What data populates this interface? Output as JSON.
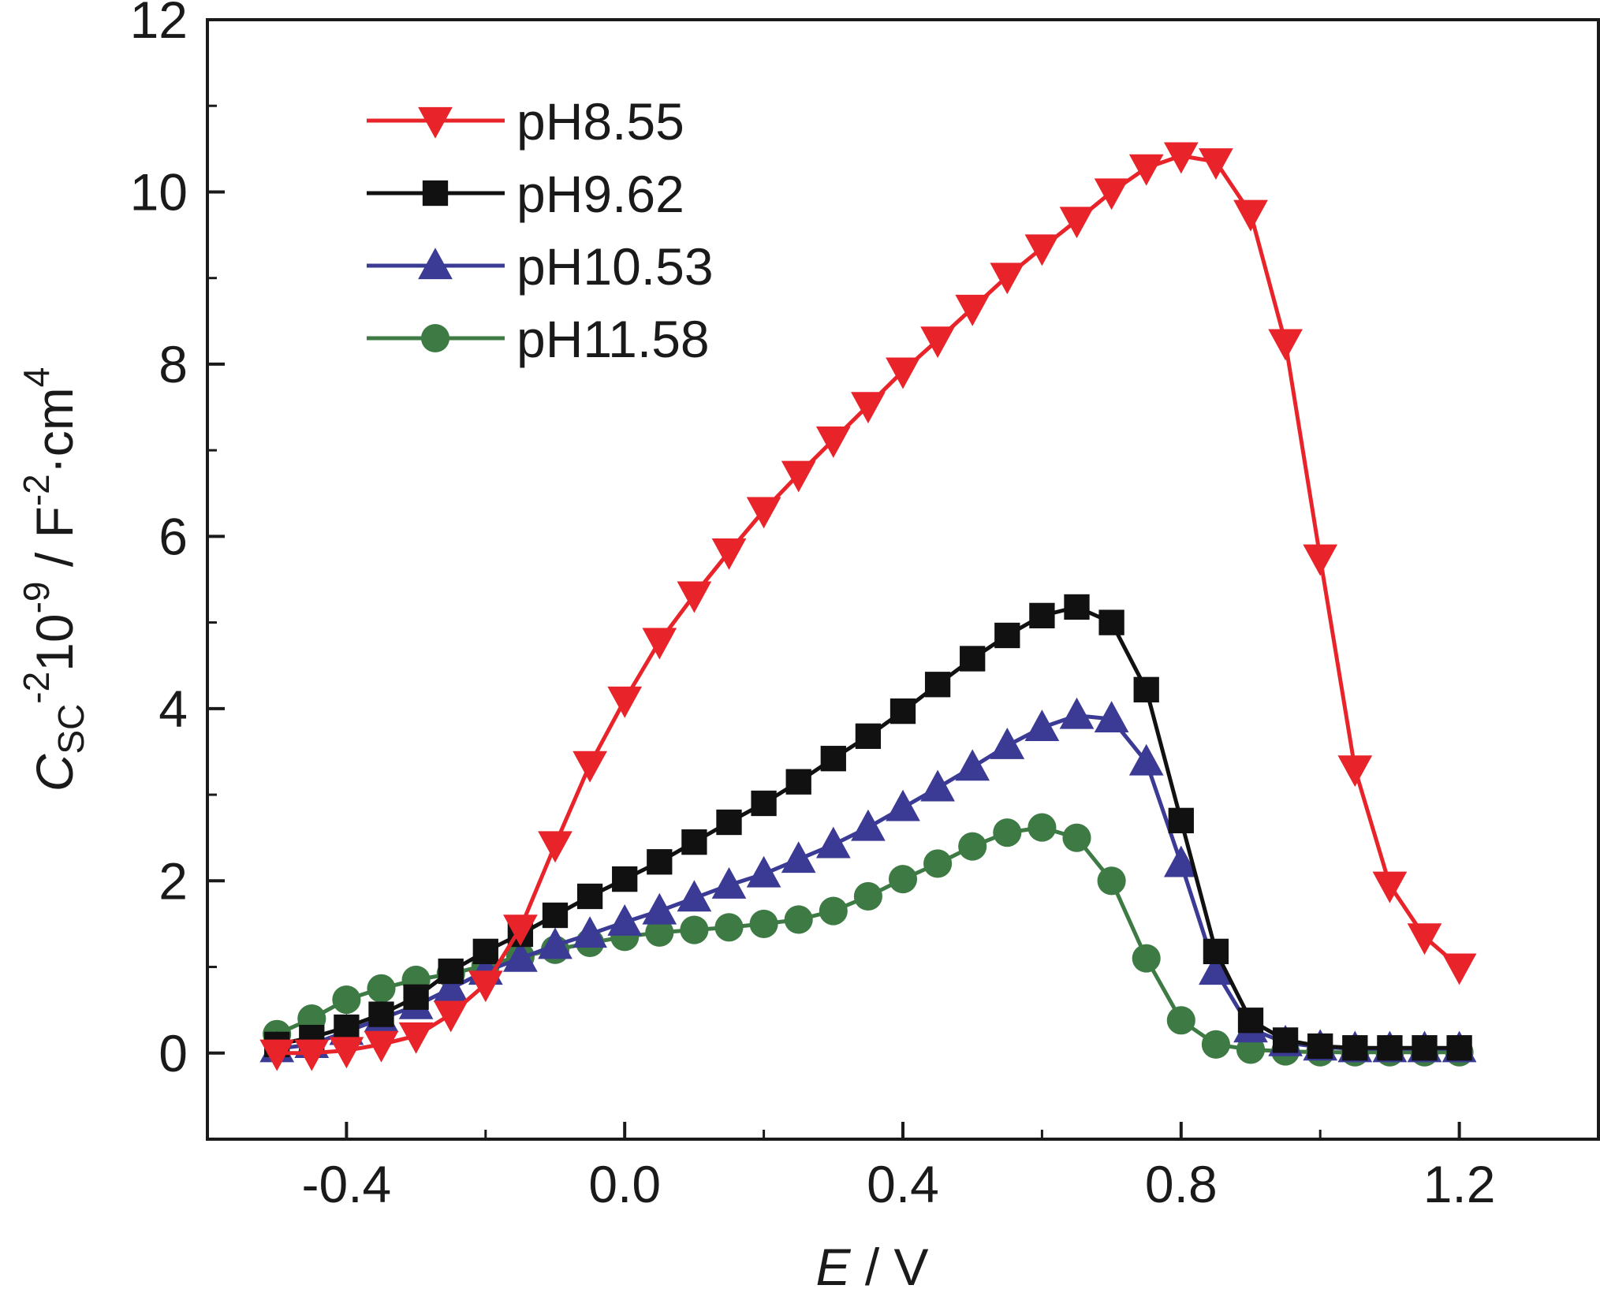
{
  "chart_data": {
    "type": "line",
    "xaxis": {
      "range": [
        -0.6,
        1.4
      ],
      "ticks": [
        -0.4,
        0.0,
        0.4,
        0.8,
        1.2
      ],
      "tick_labels": [
        "-0.4",
        "0.0",
        "0.4",
        "0.8",
        "1.2"
      ],
      "minor_ticks": [
        -0.6,
        -0.2,
        0.2,
        0.6,
        1.0
      ]
    },
    "yaxis": {
      "range": [
        -1,
        12
      ],
      "ticks": [
        0,
        2,
        4,
        6,
        8,
        10,
        12
      ],
      "tick_labels": [
        "0",
        "2",
        "4",
        "6",
        "8",
        "10",
        "12"
      ],
      "minor_ticks": [
        1,
        3,
        5,
        7,
        9,
        11
      ]
    },
    "xlabel": {
      "italic": "E",
      "rest": " / V"
    },
    "ylabel": {
      "symbol": "C",
      "sub": "SC",
      "sup1": "-2",
      "mid": "10",
      "sup2": "-9",
      "unit": " / F",
      "sup3": "-2",
      "unit2": "·cm",
      "sup4": "4"
    },
    "grid": false,
    "legend_position": "top-left",
    "x": [
      -0.5,
      -0.45,
      -0.4,
      -0.35,
      -0.3,
      -0.25,
      -0.2,
      -0.15,
      -0.1,
      -0.05,
      0.0,
      0.05,
      0.1,
      0.15,
      0.2,
      0.25,
      0.3,
      0.35,
      0.4,
      0.45,
      0.5,
      0.55,
      0.6,
      0.65,
      0.7,
      0.75,
      0.8,
      0.85,
      0.9,
      0.95,
      1.0,
      1.05,
      1.1,
      1.15,
      1.2
    ],
    "series": [
      {
        "name": "pH8.55",
        "color": "#e8242a",
        "marker": "triangle-down",
        "values": [
          0.0,
          0.0,
          0.03,
          0.1,
          0.2,
          0.45,
          0.8,
          1.45,
          2.42,
          3.35,
          4.1,
          4.78,
          5.32,
          5.82,
          6.3,
          6.72,
          7.12,
          7.52,
          7.92,
          8.28,
          8.65,
          9.02,
          9.35,
          9.67,
          10.0,
          10.28,
          10.42,
          10.35,
          9.75,
          8.25,
          5.75,
          3.3,
          1.95,
          1.35,
          1.0
        ]
      },
      {
        "name": "pH9.62",
        "color": "#111111",
        "marker": "square",
        "values": [
          0.1,
          0.18,
          0.3,
          0.45,
          0.65,
          0.95,
          1.18,
          1.38,
          1.6,
          1.82,
          2.02,
          2.22,
          2.45,
          2.68,
          2.9,
          3.15,
          3.42,
          3.68,
          3.97,
          4.28,
          4.58,
          4.85,
          5.08,
          5.18,
          5.0,
          4.22,
          2.7,
          1.18,
          0.38,
          0.15,
          0.08,
          0.06,
          0.06,
          0.06,
          0.06
        ]
      },
      {
        "name": "pH10.53",
        "color": "#3b3b96",
        "marker": "triangle-up",
        "values": [
          0.05,
          0.1,
          0.25,
          0.4,
          0.55,
          0.75,
          0.95,
          1.1,
          1.25,
          1.38,
          1.52,
          1.65,
          1.8,
          1.95,
          2.08,
          2.25,
          2.42,
          2.62,
          2.85,
          3.08,
          3.32,
          3.57,
          3.78,
          3.92,
          3.88,
          3.38,
          2.2,
          0.95,
          0.28,
          0.12,
          0.07,
          0.05,
          0.05,
          0.05,
          0.05
        ]
      },
      {
        "name": "pH11.58",
        "color": "#3d7a44",
        "marker": "circle",
        "values": [
          0.22,
          0.4,
          0.62,
          0.75,
          0.85,
          0.92,
          1.02,
          1.12,
          1.2,
          1.28,
          1.35,
          1.4,
          1.43,
          1.46,
          1.5,
          1.55,
          1.65,
          1.82,
          2.02,
          2.2,
          2.4,
          2.56,
          2.62,
          2.5,
          2.0,
          1.1,
          0.38,
          0.1,
          0.04,
          0.02,
          0.01,
          0.01,
          0.01,
          0.01,
          0.01
        ]
      }
    ]
  }
}
